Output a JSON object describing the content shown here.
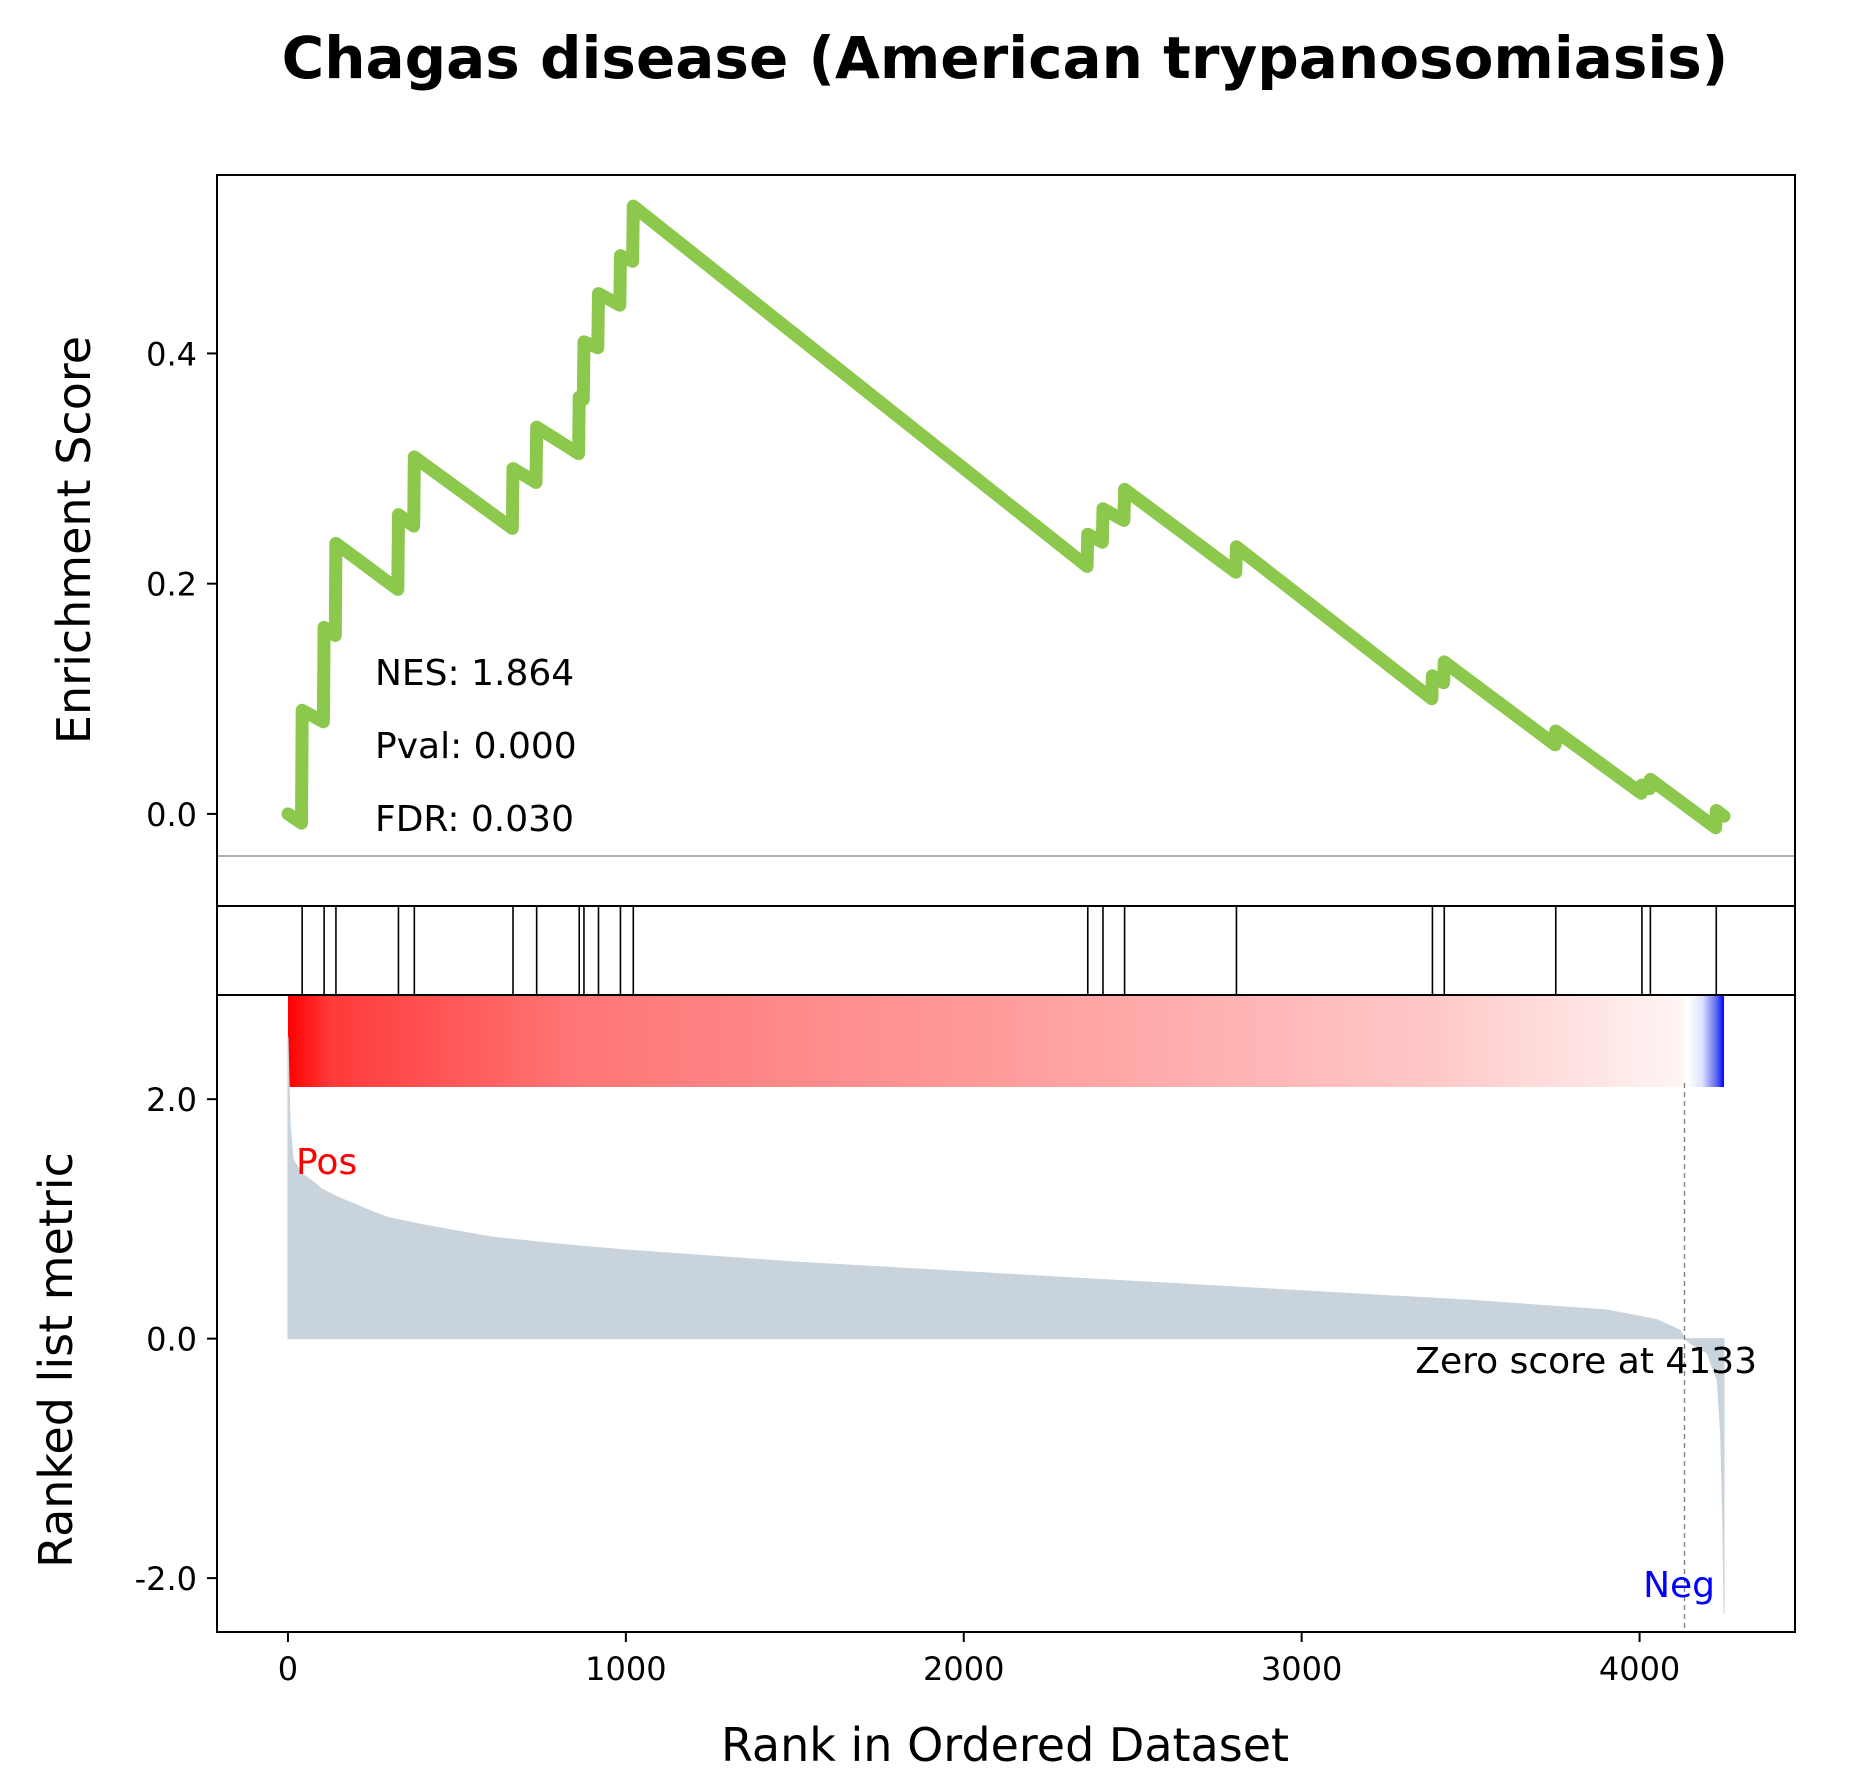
{
  "chart_data": [
    {
      "type": "line",
      "panel": "enrichment",
      "title": "Chagas disease (American trypanosomiasis)",
      "xlabel": "Rank in Ordered Dataset",
      "ylabel": "Enrichment Score",
      "xlim": [
        -210,
        4460
      ],
      "ylim": [
        -0.08,
        0.555
      ],
      "yticks": [
        0.0,
        0.2,
        0.4
      ],
      "ytick_labels": [
        "0.0",
        "0.2",
        "0.4"
      ],
      "zero_line": true,
      "grid": false,
      "line_color": "#8CC84B",
      "annotations": [
        {
          "id": "nes",
          "text": "NES: 1.864"
        },
        {
          "id": "pval",
          "text": "Pval: 0.000"
        },
        {
          "id": "fdr",
          "text": "FDR: 0.030"
        }
      ],
      "points": [
        [
          0,
          0.0
        ],
        [
          40,
          -0.008
        ],
        [
          42,
          0.09
        ],
        [
          105,
          0.08
        ],
        [
          107,
          0.162
        ],
        [
          140,
          0.155
        ],
        [
          142,
          0.235
        ],
        [
          325,
          0.195
        ],
        [
          327,
          0.26
        ],
        [
          372,
          0.25
        ],
        [
          374,
          0.31
        ],
        [
          664,
          0.248
        ],
        [
          666,
          0.3
        ],
        [
          734,
          0.288
        ],
        [
          736,
          0.336
        ],
        [
          860,
          0.313
        ],
        [
          862,
          0.362
        ],
        [
          874,
          0.36
        ],
        [
          876,
          0.41
        ],
        [
          917,
          0.405
        ],
        [
          919,
          0.452
        ],
        [
          982,
          0.442
        ],
        [
          984,
          0.485
        ],
        [
          1020,
          0.48
        ],
        [
          1022,
          0.528
        ],
        [
          2365,
          0.215
        ],
        [
          2367,
          0.243
        ],
        [
          2410,
          0.236
        ],
        [
          2412,
          0.265
        ],
        [
          2474,
          0.255
        ],
        [
          2476,
          0.282
        ],
        [
          2805,
          0.21
        ],
        [
          2807,
          0.232
        ],
        [
          3385,
          0.1
        ],
        [
          3387,
          0.12
        ],
        [
          3420,
          0.114
        ],
        [
          3422,
          0.132
        ],
        [
          3750,
          0.06
        ],
        [
          3752,
          0.072
        ],
        [
          4005,
          0.018
        ],
        [
          4007,
          0.025
        ],
        [
          4030,
          0.022
        ],
        [
          4032,
          0.03
        ],
        [
          4225,
          -0.012
        ],
        [
          4227,
          0.003
        ],
        [
          4250,
          -0.002
        ]
      ]
    },
    {
      "type": "scatter",
      "panel": "hits",
      "marker": "vertical-line",
      "x": [
        42,
        107,
        142,
        327,
        374,
        666,
        736,
        862,
        876,
        919,
        984,
        1022,
        2367,
        2412,
        2476,
        2807,
        3387,
        3422,
        3752,
        4007,
        4032,
        4227
      ]
    },
    {
      "type": "area",
      "panel": "ranked-metric",
      "xlabel": "Rank in Ordered Dataset",
      "ylabel": "Ranked list metric",
      "xlim": [
        -210,
        4460
      ],
      "ylim": [
        -2.45,
        2.87
      ],
      "xticks": [
        0,
        1000,
        2000,
        3000,
        4000
      ],
      "xtick_labels": [
        "0",
        "1000",
        "2000",
        "3000",
        "4000"
      ],
      "yticks": [
        2.0,
        0.0,
        -2.0
      ],
      "ytick_labels": [
        "2.0",
        "0.0",
        "-2.0"
      ],
      "fill_color": "#C9D3DB",
      "pos_label": "Pos",
      "neg_label": "Neg",
      "pos_color": "#FF0000",
      "neg_color": "#0000FF",
      "zero_cross_rank": 4133,
      "zero_cross_text": "Zero score at 4133",
      "colorbar": {
        "from": "#FF0000",
        "mid": "#FFFFFF",
        "to": "#0000FF",
        "x_range": [
          0,
          4250
        ]
      },
      "points": [
        [
          0,
          2.52
        ],
        [
          6,
          1.8
        ],
        [
          15,
          1.5
        ],
        [
          40,
          1.38
        ],
        [
          80,
          1.3
        ],
        [
          100,
          1.25
        ],
        [
          150,
          1.18
        ],
        [
          200,
          1.12
        ],
        [
          250,
          1.06
        ],
        [
          300,
          1.01
        ],
        [
          400,
          0.95
        ],
        [
          500,
          0.9
        ],
        [
          600,
          0.85
        ],
        [
          700,
          0.82
        ],
        [
          800,
          0.79
        ],
        [
          1000,
          0.74
        ],
        [
          1500,
          0.64
        ],
        [
          2000,
          0.56
        ],
        [
          2500,
          0.48
        ],
        [
          3000,
          0.4
        ],
        [
          3500,
          0.32
        ],
        [
          3900,
          0.24
        ],
        [
          4050,
          0.16
        ],
        [
          4120,
          0.07
        ],
        [
          4133,
          0.0
        ],
        [
          4150,
          -0.04
        ],
        [
          4200,
          -0.12
        ],
        [
          4230,
          -0.35
        ],
        [
          4240,
          -0.8
        ],
        [
          4247,
          -1.6
        ],
        [
          4250,
          -2.3
        ]
      ]
    }
  ]
}
